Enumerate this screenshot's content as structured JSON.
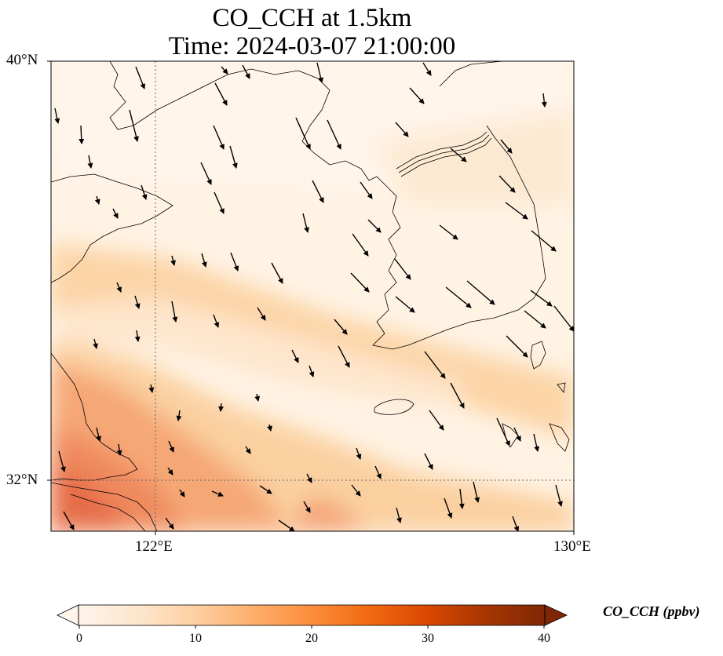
{
  "title": {
    "line1": "CO_CCH at 1.5km",
    "line2": "Time: 2024-03-07 21:00:00"
  },
  "map": {
    "extent": {
      "lon": [
        118,
        130
      ],
      "lat": [
        30.8,
        40
      ]
    },
    "lat_labels": [
      "40°N",
      "32°N"
    ],
    "lon_labels": [
      "122°E",
      "130°E"
    ],
    "gridlines": {
      "lat": 32,
      "lon": 122
    }
  },
  "colorbar": {
    "label": "CO_CCH (ppbv)",
    "ticks": [
      "0",
      "10",
      "20",
      "30",
      "40"
    ],
    "range": [
      0,
      40
    ],
    "colors": [
      "#fff5eb",
      "#fee6ce",
      "#fdd0a2",
      "#fdae6b",
      "#fd8d3c",
      "#f16913",
      "#d94801",
      "#a63603",
      "#7f2704"
    ],
    "extend": "both"
  }
}
